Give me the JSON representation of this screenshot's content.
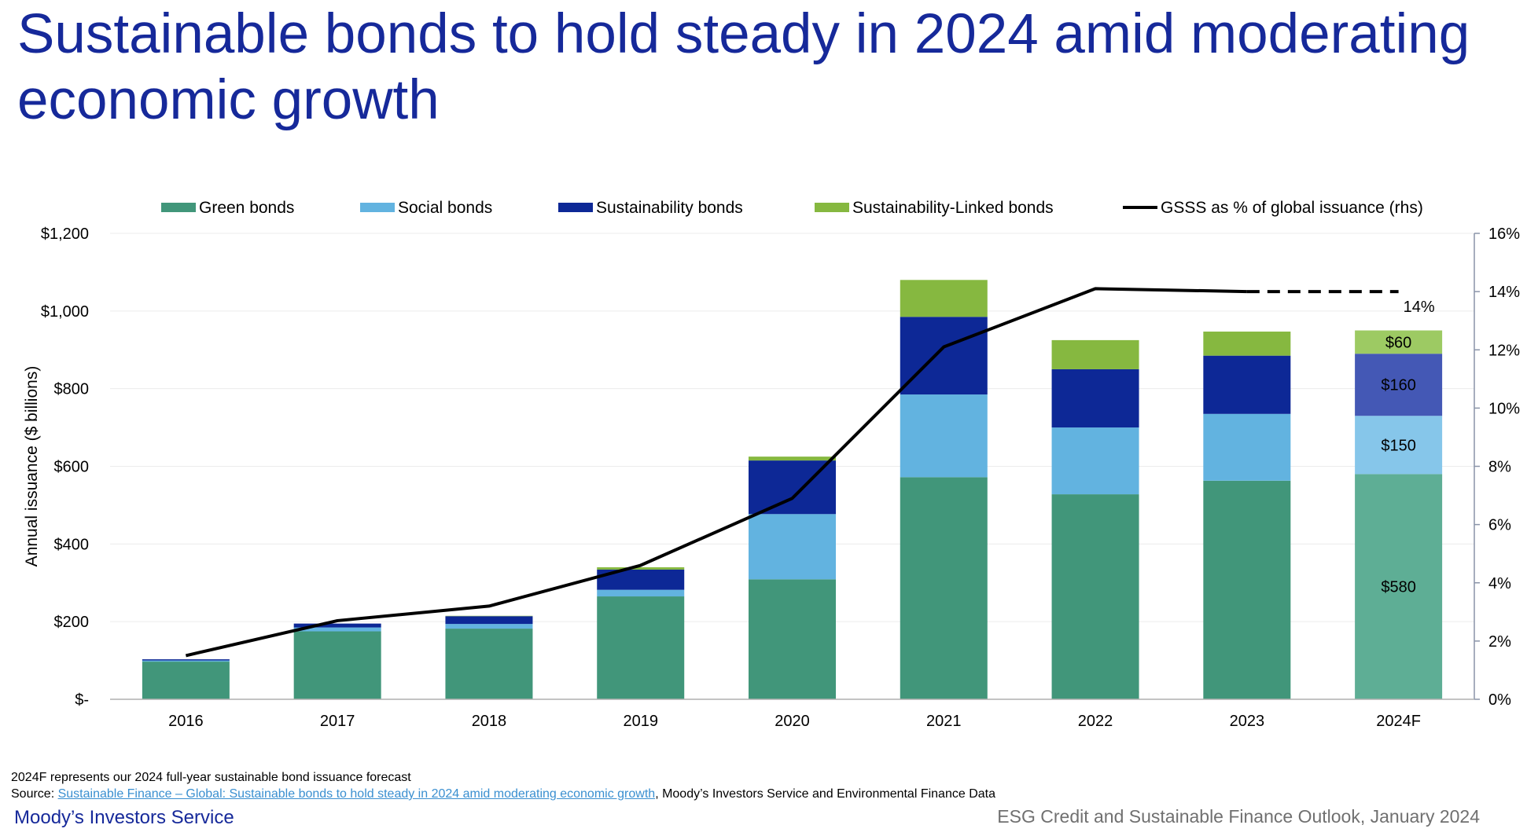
{
  "title": "Sustainable bonds to hold steady in 2024 amid moderating economic growth",
  "chart_data": {
    "type": "bar",
    "stacked": true,
    "categories": [
      "2016",
      "2017",
      "2018",
      "2019",
      "2020",
      "2021",
      "2022",
      "2023",
      "2024F"
    ],
    "series": [
      {
        "name": "Green bonds",
        "color": "#41967a",
        "forecast_color": "#5eae95",
        "values": [
          97,
          175,
          182,
          265,
          309,
          572,
          528,
          563,
          580
        ]
      },
      {
        "name": "Social bonds",
        "color": "#62b3e0",
        "forecast_color": "#86c6ea",
        "values": [
          3,
          10,
          12,
          17,
          168,
          213,
          172,
          172,
          150
        ]
      },
      {
        "name": "Sustainability bonds",
        "color": "#0d2896",
        "forecast_color": "#4458b5",
        "values": [
          3,
          10,
          20,
          52,
          138,
          200,
          150,
          150,
          160
        ]
      },
      {
        "name": "Sustainability-Linked bonds",
        "color": "#86b840",
        "forecast_color": "#9dca63",
        "values": [
          0,
          0,
          1,
          6,
          10,
          95,
          75,
          62,
          60
        ]
      }
    ],
    "line_series": {
      "name": "GSSS as % of global issuance (rhs)",
      "color": "#000000",
      "values": [
        1.5,
        2.7,
        3.2,
        4.6,
        6.9,
        12.1,
        14.1,
        14.0,
        14.0
      ],
      "forecast_from_index": 7
    },
    "y_left": {
      "label": "Annual issuance ($ billions)",
      "min": 0,
      "max": 1200,
      "step": 200,
      "tick_labels": [
        "$-",
        "$200",
        "$400",
        "$600",
        "$800",
        "$1,000",
        "$1,200"
      ]
    },
    "y_right": {
      "min": 0,
      "max": 16,
      "step": 2,
      "tick_labels": [
        "0%",
        "2%",
        "4%",
        "6%",
        "8%",
        "10%",
        "12%",
        "14%",
        "16%"
      ]
    },
    "data_labels": [
      {
        "category_index": 8,
        "series_index": 0,
        "text": "$580"
      },
      {
        "category_index": 8,
        "series_index": 1,
        "text": "$150"
      },
      {
        "category_index": 8,
        "series_index": 2,
        "text": "$160"
      },
      {
        "category_index": 8,
        "series_index": 3,
        "text": "$60"
      }
    ],
    "line_label": {
      "index": 8,
      "text": "14%"
    },
    "legend_position": "top",
    "grid": true
  },
  "footer": {
    "note": "2024F represents our 2024 full-year sustainable bond issuance forecast",
    "source_prefix": "Source: ",
    "source_link": "Sustainable Finance – Global: Sustainable bonds to hold steady in 2024 amid moderating economic growth",
    "source_suffix": ", Moody’s Investors Service and Environmental Finance Data",
    "brand": "Moody’s Investors Service",
    "outlook": "ESG Credit and Sustainable Finance Outlook, January 2024"
  }
}
